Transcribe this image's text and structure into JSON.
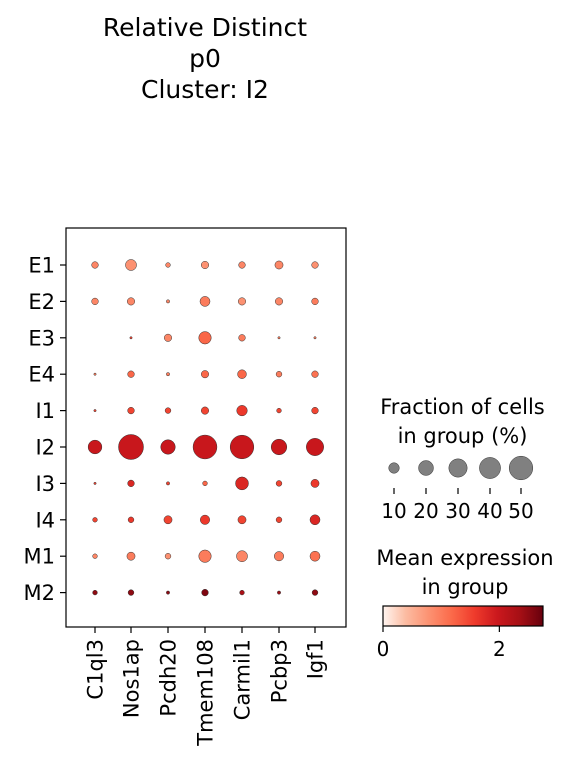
{
  "title_lines": [
    "Relative Distinct",
    "p0",
    "Cluster: I2"
  ],
  "chart_data": {
    "type": "dotplot",
    "rows": [
      "E1",
      "E2",
      "E3",
      "E4",
      "I1",
      "I2",
      "I3",
      "I4",
      "M1",
      "M2"
    ],
    "columns": [
      "C1ql3",
      "Nos1ap",
      "Pcdh20",
      "Tmem108",
      "Carmil1",
      "Pcbp3",
      "Igf1"
    ],
    "fraction_pct": [
      [
        4,
        11,
        2,
        5,
        4,
        6,
        4
      ],
      [
        4,
        5,
        1,
        9,
        5,
        5,
        4
      ],
      [
        0,
        0.5,
        5,
        14,
        4,
        0.5,
        0.5
      ],
      [
        0.5,
        4,
        1,
        5,
        7,
        3,
        4
      ],
      [
        0.5,
        4,
        3,
        5,
        10,
        2,
        4
      ],
      [
        17,
        56,
        19,
        51,
        50,
        22,
        27
      ],
      [
        0.5,
        4,
        1,
        2,
        15,
        3,
        6
      ],
      [
        2,
        3,
        6,
        8,
        6,
        3,
        9
      ],
      [
        2,
        6,
        3,
        14,
        11,
        8,
        9
      ],
      [
        2,
        3,
        1,
        4,
        2,
        1,
        3
      ]
    ],
    "mean_expr": [
      [
        0.9,
        0.8,
        0.9,
        0.8,
        0.9,
        0.9,
        0.8
      ],
      [
        0.9,
        0.9,
        0.9,
        1.0,
        0.8,
        0.9,
        1.0
      ],
      [
        0,
        1.5,
        0.9,
        1.2,
        1.0,
        1.0,
        1.0
      ],
      [
        1.0,
        1.2,
        1.0,
        1.2,
        1.2,
        1.0,
        1.1
      ],
      [
        1.5,
        1.5,
        1.5,
        1.5,
        1.6,
        1.5,
        1.5
      ],
      [
        2.0,
        2.0,
        2.0,
        2.0,
        2.0,
        2.0,
        2.0
      ],
      [
        1.5,
        1.8,
        1.5,
        1.2,
        1.8,
        1.5,
        1.6
      ],
      [
        1.5,
        1.6,
        1.5,
        1.6,
        1.5,
        1.5,
        1.8
      ],
      [
        0.9,
        1.0,
        0.8,
        1.0,
        0.9,
        1.0,
        1.1
      ],
      [
        2.5,
        2.5,
        2.5,
        2.6,
        2.3,
        2.4,
        2.5
      ]
    ],
    "size_legend": {
      "title_lines": [
        "Fraction of cells",
        "in group (%)"
      ],
      "ticks": [
        10,
        20,
        30,
        40,
        50
      ],
      "tick_labels": [
        "10",
        "20",
        "30",
        "40",
        "50"
      ]
    },
    "color_legend": {
      "title_lines": [
        "Mean expression",
        "in group"
      ],
      "range": [
        0,
        2.75
      ],
      "tick_values": [
        0,
        2
      ],
      "tick_labels": [
        "0",
        "2"
      ],
      "colormap": "Reds",
      "colormap_stops": [
        "#fff5f0",
        "#fcbba1",
        "#fc9272",
        "#fb6a4a",
        "#ef3b2c",
        "#cb181d",
        "#a50f15",
        "#67000d"
      ]
    },
    "marker_color_for_size": "#808080",
    "dot_edge_color": "#333333"
  }
}
